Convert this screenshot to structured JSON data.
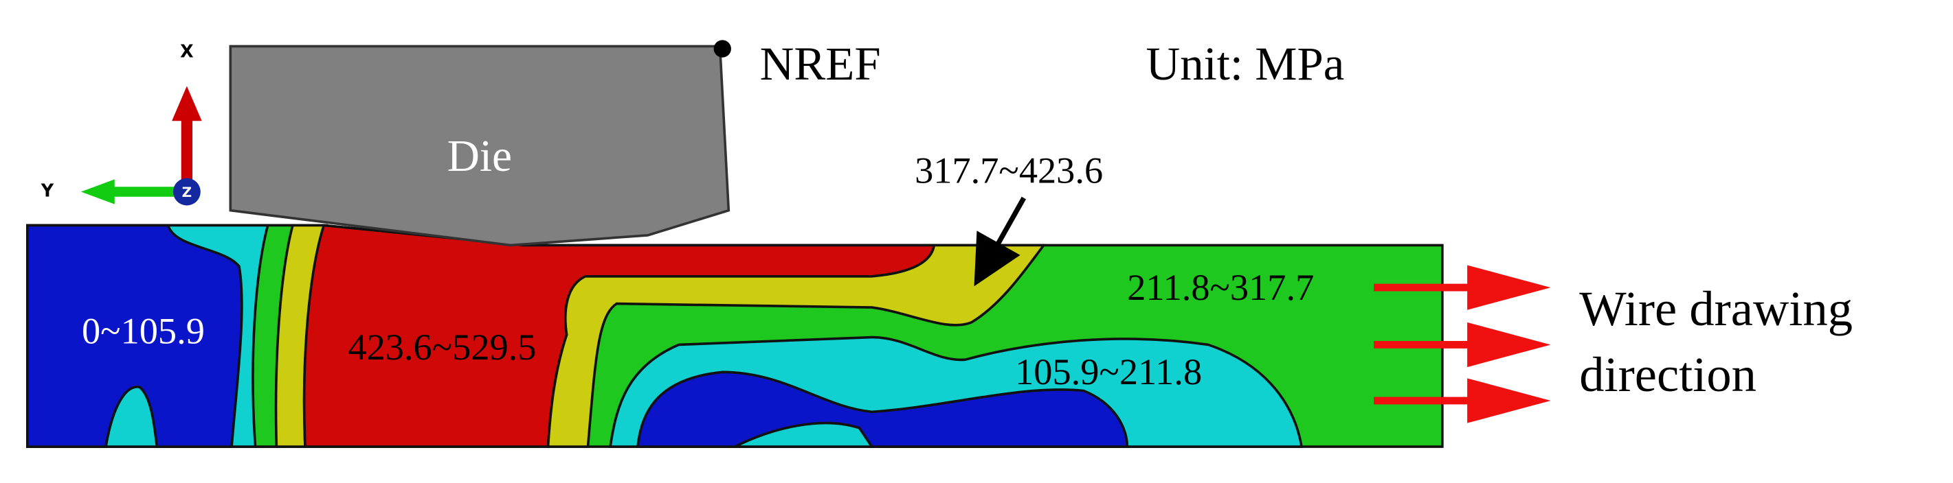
{
  "axes": {
    "x": "X",
    "y": "Y",
    "z": "Z"
  },
  "die": "Die",
  "reference_point": "NREF",
  "unit": "Unit: MPa",
  "contour_labels": [
    "0~105.9",
    "423.6~529.5",
    "317.7~423.6",
    "211.8~317.7",
    "105.9~211.8"
  ],
  "direction_label": [
    "Wire drawing",
    "direction"
  ]
}
